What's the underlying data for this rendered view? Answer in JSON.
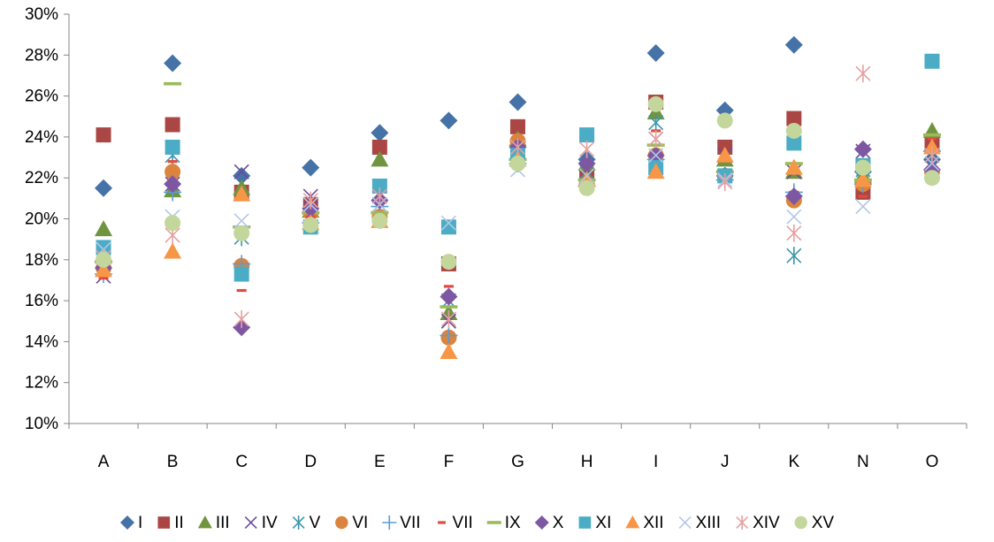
{
  "chart_data": {
    "type": "scatter",
    "title": "",
    "xlabel": "",
    "ylabel": "",
    "categories": [
      "A",
      "B",
      "C",
      "D",
      "E",
      "F",
      "G",
      "H",
      "I",
      "J",
      "K",
      "N",
      "O"
    ],
    "ylim": [
      0.1,
      0.3
    ],
    "yticks": [
      0.1,
      0.12,
      0.14,
      0.16,
      0.18,
      0.2,
      0.22,
      0.24,
      0.26,
      0.28,
      0.3
    ],
    "ytick_labels": [
      "10%",
      "12%",
      "14%",
      "16%",
      "18%",
      "20%",
      "22%",
      "24%",
      "26%",
      "28%",
      "30%"
    ],
    "grid": false,
    "legend_position": "bottom",
    "series": [
      {
        "name": "I",
        "marker": "diamond",
        "color": "#4572A7",
        "values": [
          0.215,
          0.276,
          0.221,
          0.225,
          0.242,
          0.248,
          0.257,
          0.229,
          0.281,
          0.253,
          0.285,
          0.223,
          0.229
        ]
      },
      {
        "name": "II",
        "marker": "square",
        "color": "#AA4643",
        "values": [
          0.241,
          0.246,
          0.213,
          0.207,
          0.235,
          0.178,
          0.245,
          0.221,
          0.257,
          0.235,
          0.249,
          0.213,
          0.237
        ]
      },
      {
        "name": "III",
        "marker": "triangle",
        "color": "#71943F",
        "values": [
          0.195,
          0.214,
          0.215,
          0.204,
          0.229,
          0.154,
          0.239,
          0.227,
          0.252,
          0.229,
          0.223,
          0.221,
          0.243
        ]
      },
      {
        "name": "IV",
        "marker": "x",
        "color": "#6B4C9A",
        "values": [
          0.172,
          0.217,
          0.223,
          0.211,
          0.211,
          0.15,
          0.234,
          0.221,
          0.239,
          0.231,
          0.223,
          0.233,
          0.231
        ]
      },
      {
        "name": "V",
        "marker": "star",
        "color": "#3D96AE",
        "values": [
          0.181,
          0.231,
          0.191,
          0.199,
          0.207,
          0.16,
          0.231,
          0.223,
          0.247,
          0.221,
          0.182,
          0.224,
          0.231
        ]
      },
      {
        "name": "VI",
        "marker": "circle",
        "color": "#DB843D",
        "values": [
          0.176,
          0.223,
          0.177,
          0.203,
          0.201,
          0.142,
          0.238,
          0.217,
          0.231,
          0.221,
          0.209,
          0.217,
          0.223
        ]
      },
      {
        "name": "VII",
        "marker": "plus",
        "color": "#5B9BD5",
        "values": [
          0.173,
          0.213,
          0.178,
          0.198,
          0.206,
          0.143,
          0.227,
          0.216,
          0.229,
          0.219,
          0.213,
          0.217,
          0.233
        ]
      },
      {
        "name": "VII",
        "marker": "dash",
        "color": "#E04A3F",
        "values": [
          0.171,
          0.228,
          0.165,
          0.201,
          0.199,
          0.167,
          0.233,
          0.219,
          0.243,
          0.221,
          0.213,
          0.211,
          0.239
        ]
      },
      {
        "name": "IX",
        "marker": "hline",
        "color": "#9BBB59",
        "values": [
          0.179,
          0.266,
          0.196,
          0.203,
          0.203,
          0.157,
          0.229,
          0.219,
          0.236,
          0.223,
          0.227,
          0.219,
          0.241
        ]
      },
      {
        "name": "X",
        "marker": "diamond",
        "color": "#7E57A3",
        "values": [
          0.176,
          0.217,
          0.147,
          0.205,
          0.209,
          0.162,
          0.235,
          0.227,
          0.231,
          0.221,
          0.211,
          0.234,
          0.224
        ]
      },
      {
        "name": "XI",
        "marker": "square",
        "color": "#4BACC6",
        "values": [
          0.186,
          0.235,
          0.173,
          0.196,
          0.216,
          0.196,
          0.231,
          0.241,
          0.225,
          0.221,
          0.237,
          0.226,
          0.277
        ]
      },
      {
        "name": "XII",
        "marker": "triangle",
        "color": "#F79646",
        "values": [
          0.175,
          0.184,
          0.212,
          0.198,
          0.199,
          0.135,
          0.229,
          0.219,
          0.223,
          0.231,
          0.225,
          0.219,
          0.235
        ]
      },
      {
        "name": "XIII",
        "marker": "x",
        "color": "#B4C7E7",
        "values": [
          0.185,
          0.201,
          0.199,
          0.207,
          0.207,
          0.198,
          0.224,
          0.221,
          0.231,
          0.219,
          0.201,
          0.206,
          0.227
        ]
      },
      {
        "name": "XIV",
        "marker": "star",
        "color": "#E6A0A0",
        "values": [
          0.181,
          0.192,
          0.151,
          0.209,
          0.211,
          0.151,
          0.235,
          0.234,
          0.239,
          0.218,
          0.193,
          0.271,
          0.231
        ]
      },
      {
        "name": "XV",
        "marker": "circle",
        "color": "#C3D69B",
        "values": [
          0.18,
          0.198,
          0.193,
          0.197,
          0.199,
          0.179,
          0.227,
          0.215,
          0.256,
          0.248,
          0.243,
          0.225,
          0.22
        ]
      }
    ]
  }
}
